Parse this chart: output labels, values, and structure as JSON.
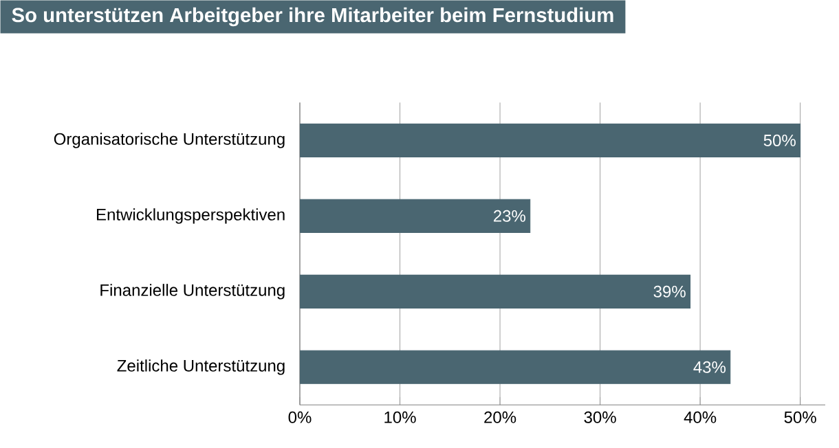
{
  "chart_data": {
    "type": "bar",
    "orientation": "horizontal",
    "title": "So unterstützen Arbeitgeber ihre Mitarbeiter beim Fernstudium",
    "categories": [
      "Organisatorische Unterstützung",
      "Entwicklungsperspektiven",
      "Finanzielle Unterstützung",
      "Zeitliche Unterstützung"
    ],
    "values": [
      50,
      23,
      39,
      43
    ],
    "value_labels": [
      "50%",
      "23%",
      "39%",
      "43%"
    ],
    "color": "#4a6671",
    "xlim": [
      0,
      52.5
    ],
    "xticks": [
      {
        "value": 0,
        "label": "0%"
      },
      {
        "value": 10,
        "label": "10%"
      },
      {
        "value": 20,
        "label": "20%"
      },
      {
        "value": 30,
        "label": "30%"
      },
      {
        "value": 40,
        "label": "40%"
      },
      {
        "value": 50,
        "label": "50%"
      }
    ],
    "grid": "x"
  }
}
